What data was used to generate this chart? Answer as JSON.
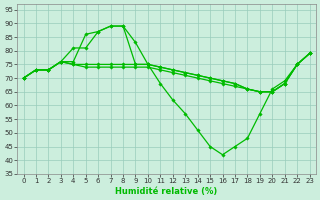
{
  "xlabel": "Humidité relative (%)",
  "xlim": [
    -0.5,
    23.5
  ],
  "ylim": [
    35,
    97
  ],
  "yticks": [
    35,
    40,
    45,
    50,
    55,
    60,
    65,
    70,
    75,
    80,
    85,
    90,
    95
  ],
  "xticks": [
    0,
    1,
    2,
    3,
    4,
    5,
    6,
    7,
    8,
    9,
    10,
    11,
    12,
    13,
    14,
    15,
    16,
    17,
    18,
    19,
    20,
    21,
    22,
    23
  ],
  "bg_color": "#cceedd",
  "grid_color": "#99ccbb",
  "line_color": "#00bb00",
  "lines": [
    [
      70,
      73,
      73,
      76,
      76,
      86,
      87,
      89,
      89,
      83,
      75,
      68,
      62,
      57,
      51,
      45,
      42,
      45,
      48,
      57,
      66,
      69,
      75,
      79
    ],
    [
      70,
      73,
      73,
      76,
      75,
      75,
      75,
      75,
      75,
      75,
      75,
      74,
      73,
      72,
      71,
      70,
      69,
      68,
      66,
      65,
      65,
      68,
      75,
      79
    ],
    [
      70,
      73,
      73,
      76,
      75,
      74,
      74,
      74,
      74,
      74,
      74,
      73,
      72,
      71,
      70,
      69,
      68,
      67,
      66,
      65,
      65,
      68,
      75,
      79
    ],
    [
      70,
      73,
      73,
      76,
      81,
      81,
      87,
      89,
      89,
      75,
      75,
      74,
      73,
      72,
      71,
      70,
      69,
      68,
      66,
      65,
      65,
      68,
      75,
      79
    ]
  ],
  "marker": "D",
  "markersize": 1.8,
  "linewidth": 0.9,
  "tick_fontsize": 5.0,
  "xlabel_fontsize": 6.0
}
